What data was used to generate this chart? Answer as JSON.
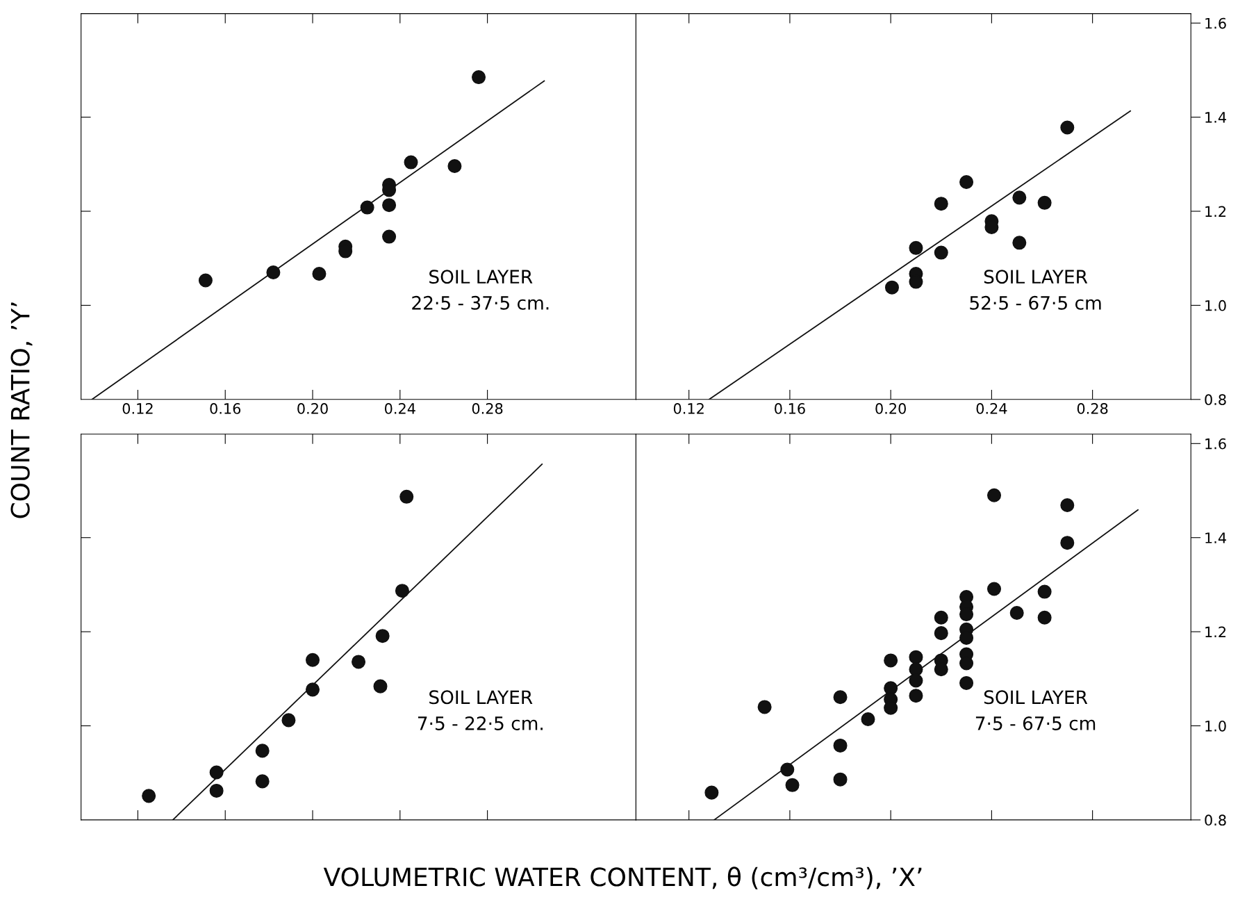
{
  "chart_data": [
    {
      "type": "scatter",
      "ylabel": "COUNT RATIO, ’Y’",
      "xlim": [
        0.094,
        0.348
      ],
      "ylim": [
        0.8,
        1.62
      ],
      "tick_labels": "x",
      "xticks": [
        {
          "value": 0.12,
          "label": "0.12"
        },
        {
          "value": 0.16,
          "label": "0.16"
        },
        {
          "value": 0.2,
          "label": "0.20"
        },
        {
          "value": 0.24,
          "label": "0.24"
        },
        {
          "value": 0.28,
          "label": "0.28"
        }
      ],
      "yticks": [
        1.0,
        1.2,
        1.4
      ],
      "annotations": [
        "SOIL LAYER",
        "22·5 - 37·5 cm."
      ],
      "series": [
        {
          "marker": "circle",
          "color": "#111111",
          "x": [
            0.151,
            0.182,
            0.203,
            0.215,
            0.215,
            0.225,
            0.235,
            0.235,
            0.235,
            0.235,
            0.245,
            0.265,
            0.276
          ],
          "values": [
            1.053,
            1.07,
            1.067,
            1.125,
            1.115,
            1.208,
            1.256,
            1.245,
            1.213,
            1.146,
            1.304,
            1.296,
            1.485
          ]
        },
        {
          "type": "line",
          "color": "#111111",
          "x": [
            0.099,
            0.306
          ],
          "values": [
            0.8,
            1.477
          ]
        }
      ]
    },
    {
      "type": "scatter",
      "xlim": [
        0.099,
        0.319
      ],
      "ylim": [
        0.8,
        1.62
      ],
      "xticks": [
        {
          "value": 0.12,
          "label": "0.12"
        },
        {
          "value": 0.16,
          "label": "0.16"
        },
        {
          "value": 0.2,
          "label": "0.20"
        },
        {
          "value": 0.24,
          "label": "0.24"
        },
        {
          "value": 0.28,
          "label": "0.28"
        }
      ],
      "yticks": [
        {
          "value": 0.8,
          "label": "0.8"
        },
        {
          "value": 1.0,
          "label": "1.0"
        },
        {
          "value": 1.2,
          "label": "1.2"
        },
        {
          "value": 1.4,
          "label": "1.4"
        },
        {
          "value": 1.6,
          "label": "1.6"
        }
      ],
      "annotations": [
        "SOIL LAYER",
        "52·5 - 67·5 cm"
      ],
      "series": [
        {
          "marker": "circle",
          "color": "#111111",
          "x": [
            0.2005,
            0.21,
            0.21,
            0.21,
            0.22,
            0.22,
            0.23,
            0.24,
            0.24,
            0.251,
            0.251,
            0.261,
            0.27
          ],
          "values": [
            1.038,
            1.122,
            1.067,
            1.05,
            1.216,
            1.112,
            1.262,
            1.179,
            1.166,
            1.229,
            1.133,
            1.218,
            1.378
          ]
        },
        {
          "type": "line",
          "color": "#111111",
          "x": [
            0.128,
            0.295
          ],
          "values": [
            0.8,
            1.413
          ]
        }
      ]
    },
    {
      "type": "scatter",
      "xlim": [
        0.094,
        0.348
      ],
      "ylim": [
        0.8,
        1.62
      ],
      "tick_labels": false,
      "xlabel": "VOLUMETRIC WATER CONTENT, θ (cm³/cm³), ’X’",
      "xticks": [
        0.12,
        0.16,
        0.2,
        0.24,
        0.28
      ],
      "yticks": [
        1.0,
        1.2,
        1.4
      ],
      "annotations": [
        "SOIL LAYER",
        "7·5 - 22·5 cm."
      ],
      "series": [
        {
          "marker": "circle",
          "color": "#111111",
          "x": [
            0.125,
            0.156,
            0.156,
            0.177,
            0.177,
            0.189,
            0.2,
            0.2,
            0.221,
            0.231,
            0.232,
            0.241,
            0.243
          ],
          "values": [
            0.851,
            0.901,
            0.862,
            0.947,
            0.882,
            1.012,
            1.14,
            1.077,
            1.136,
            1.084,
            1.191,
            1.287,
            1.487
          ]
        },
        {
          "type": "line",
          "color": "#111111",
          "x": [
            0.136,
            0.305
          ],
          "values": [
            0.8,
            1.556
          ]
        }
      ]
    },
    {
      "type": "scatter",
      "xlim": [
        0.099,
        0.319
      ],
      "ylim": [
        0.8,
        1.62
      ],
      "tick_labels": "y",
      "xticks": [
        0.12,
        0.16,
        0.2,
        0.24,
        0.28
      ],
      "yticks": [
        {
          "value": 0.8,
          "label": "0.8"
        },
        {
          "value": 1.0,
          "label": "1.0"
        },
        {
          "value": 1.2,
          "label": "1.2"
        },
        {
          "value": 1.4,
          "label": "1.4"
        },
        {
          "value": 1.6,
          "label": "1.6"
        }
      ],
      "annotations": [
        "SOIL LAYER",
        "7·5 - 67·5 cm"
      ],
      "series": [
        {
          "marker": "circle",
          "color": "#111111",
          "x": [
            0.129,
            0.15,
            0.159,
            0.161,
            0.18,
            0.18,
            0.18,
            0.191,
            0.2,
            0.2,
            0.2,
            0.2,
            0.21,
            0.21,
            0.21,
            0.21,
            0.22,
            0.22,
            0.22,
            0.22,
            0.23,
            0.23,
            0.23,
            0.23,
            0.23,
            0.23,
            0.23,
            0.23,
            0.241,
            0.241,
            0.25,
            0.261,
            0.261,
            0.27,
            0.27
          ],
          "values": [
            0.858,
            1.04,
            0.907,
            0.874,
            1.061,
            0.958,
            0.886,
            1.014,
            1.139,
            1.08,
            1.056,
            1.038,
            1.146,
            1.12,
            1.096,
            1.064,
            1.23,
            1.197,
            1.139,
            1.12,
            1.274,
            1.253,
            1.237,
            1.205,
            1.187,
            1.152,
            1.133,
            1.091,
            1.49,
            1.291,
            1.24,
            1.285,
            1.23,
            1.389,
            1.469
          ]
        },
        {
          "type": "line",
          "color": "#111111",
          "x": [
            0.13,
            0.298
          ],
          "values": [
            0.8,
            1.459
          ]
        }
      ]
    }
  ]
}
